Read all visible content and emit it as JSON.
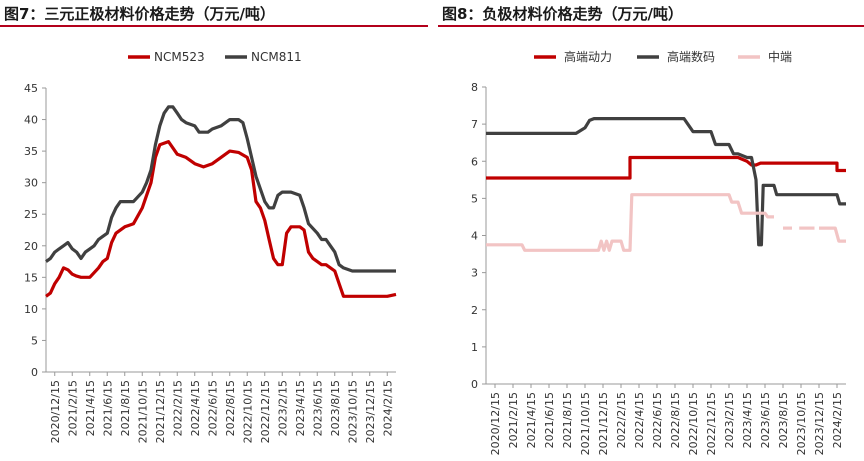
{
  "titles": {
    "left": "图7：三元正极材料价格走势（万元/吨）",
    "right": "图8：负极材料价格走势（万元/吨）"
  },
  "chart_data": [
    {
      "type": "line",
      "title": "图7：三元正极材料价格走势（万元/吨）",
      "ylim": [
        0,
        45
      ],
      "yticks": [
        0,
        5,
        10,
        15,
        20,
        25,
        30,
        35,
        40,
        45
      ],
      "xticks": [
        "2020/12/15",
        "2021/2/15",
        "2021/4/15",
        "2021/6/15",
        "2021/8/15",
        "2021/10/15",
        "2021/12/15",
        "2022/2/15",
        "2022/4/15",
        "2022/6/15",
        "2022/8/15",
        "2022/10/15",
        "2022/12/15",
        "2023/2/15",
        "2023/4/15",
        "2023/6/15",
        "2023/8/15",
        "2023/10/15",
        "2023/12/15",
        "2024/2/15"
      ],
      "x_months_range": [
        0,
        40
      ],
      "legend_position": "top",
      "series": [
        {
          "name": "NCM523",
          "color": "#c00000",
          "points": [
            [
              0,
              12
            ],
            [
              0.5,
              12.5
            ],
            [
              1,
              14
            ],
            [
              1.5,
              15
            ],
            [
              2,
              16.5
            ],
            [
              2.5,
              16.2
            ],
            [
              3,
              15.5
            ],
            [
              3.5,
              15.2
            ],
            [
              4,
              15
            ],
            [
              5,
              15
            ],
            [
              6,
              16.5
            ],
            [
              6.5,
              17.5
            ],
            [
              7,
              18
            ],
            [
              7.5,
              20.5
            ],
            [
              8,
              22
            ],
            [
              9,
              23
            ],
            [
              10,
              23.5
            ],
            [
              11,
              26
            ],
            [
              11.5,
              28
            ],
            [
              12,
              30
            ],
            [
              12.5,
              34
            ],
            [
              13,
              36
            ],
            [
              14,
              36.5
            ],
            [
              15,
              34.5
            ],
            [
              16,
              34
            ],
            [
              17,
              33
            ],
            [
              18,
              32.5
            ],
            [
              19,
              33
            ],
            [
              20,
              34
            ],
            [
              21,
              35
            ],
            [
              22,
              34.8
            ],
            [
              23,
              34
            ],
            [
              23.5,
              32
            ],
            [
              24,
              27
            ],
            [
              24.5,
              26
            ],
            [
              25,
              24
            ],
            [
              25.5,
              21
            ],
            [
              26,
              18
            ],
            [
              26.5,
              17
            ],
            [
              27,
              17
            ],
            [
              27.5,
              22
            ],
            [
              28,
              23
            ],
            [
              29,
              23
            ],
            [
              29.5,
              22.5
            ],
            [
              30,
              19
            ],
            [
              30.5,
              18
            ],
            [
              31,
              17.5
            ],
            [
              31.5,
              17
            ],
            [
              32,
              17
            ],
            [
              33,
              16
            ],
            [
              33.5,
              14
            ],
            [
              34,
              12
            ],
            [
              35,
              12
            ],
            [
              36,
              12
            ],
            [
              37,
              12
            ],
            [
              38,
              12
            ],
            [
              39,
              12
            ],
            [
              40,
              12.3
            ]
          ]
        },
        {
          "name": "NCM811",
          "color": "#404040",
          "points": [
            [
              0,
              17.5
            ],
            [
              0.5,
              18
            ],
            [
              1,
              19
            ],
            [
              1.5,
              19.5
            ],
            [
              2,
              20
            ],
            [
              2.5,
              20.5
            ],
            [
              3,
              19.5
            ],
            [
              3.5,
              19
            ],
            [
              4,
              18
            ],
            [
              4.5,
              19
            ],
            [
              5,
              19.5
            ],
            [
              5.5,
              20
            ],
            [
              6,
              21
            ],
            [
              6.5,
              21.5
            ],
            [
              7,
              22
            ],
            [
              7.5,
              24.5
            ],
            [
              8,
              26
            ],
            [
              8.5,
              27
            ],
            [
              9,
              27
            ],
            [
              10,
              27
            ],
            [
              11,
              28.5
            ],
            [
              11.5,
              30
            ],
            [
              12,
              32
            ],
            [
              12.5,
              36
            ],
            [
              13,
              39
            ],
            [
              13.5,
              41
            ],
            [
              14,
              42
            ],
            [
              14.5,
              42
            ],
            [
              15,
              41
            ],
            [
              15.5,
              40
            ],
            [
              16,
              39.5
            ],
            [
              17,
              39
            ],
            [
              17.5,
              38
            ],
            [
              18.5,
              38
            ],
            [
              19,
              38.5
            ],
            [
              20,
              39
            ],
            [
              21,
              40
            ],
            [
              22,
              40
            ],
            [
              22.5,
              39.5
            ],
            [
              23,
              37
            ],
            [
              23.5,
              34
            ],
            [
              24,
              31
            ],
            [
              24.5,
              29
            ],
            [
              25,
              27
            ],
            [
              25.5,
              26
            ],
            [
              26,
              26
            ],
            [
              26.5,
              28
            ],
            [
              27,
              28.5
            ],
            [
              28,
              28.5
            ],
            [
              29,
              28
            ],
            [
              29.5,
              26
            ],
            [
              30,
              23.5
            ],
            [
              31,
              22
            ],
            [
              31.5,
              21
            ],
            [
              32,
              21
            ],
            [
              32.5,
              20
            ],
            [
              33,
              19
            ],
            [
              33.5,
              17
            ],
            [
              34,
              16.5
            ],
            [
              35,
              16
            ],
            [
              36,
              16
            ],
            [
              37,
              16
            ],
            [
              38,
              16
            ],
            [
              39,
              16
            ],
            [
              40,
              16
            ]
          ]
        }
      ]
    },
    {
      "type": "line",
      "title": "图8：负极材料价格走势（万元/吨）",
      "ylim": [
        0,
        8
      ],
      "yticks": [
        0,
        1,
        2,
        3,
        4,
        5,
        6,
        7,
        8
      ],
      "xticks": [
        "2020/12/15",
        "2021/2/15",
        "2021/4/15",
        "2021/6/15",
        "2021/8/15",
        "2021/10/15",
        "2021/12/15",
        "2022/2/15",
        "2022/4/15",
        "2022/6/15",
        "2022/8/15",
        "2022/10/15",
        "2022/12/15",
        "2023/2/15",
        "2023/4/15",
        "2023/6/15",
        "2023/8/15",
        "2023/10/15",
        "2023/12/15",
        "2024/2/15"
      ],
      "x_months_range": [
        0,
        40
      ],
      "legend_position": "top",
      "series": [
        {
          "name": "高端动力",
          "color": "#c00000",
          "segments": [
            [
              [
                0,
                5.55
              ],
              [
                16,
                5.55
              ],
              [
                16,
                6.1
              ],
              [
                28,
                6.1
              ],
              [
                29,
                6.0
              ],
              [
                29.5,
                5.9
              ],
              [
                30,
                5.9
              ],
              [
                30.5,
                5.95
              ],
              [
                39,
                5.95
              ],
              [
                39,
                5.75
              ],
              [
                40,
                5.75
              ]
            ]
          ]
        },
        {
          "name": "高端数码",
          "color": "#404040",
          "segments": [
            [
              [
                0,
                6.75
              ],
              [
                10,
                6.75
              ],
              [
                11,
                6.9
              ],
              [
                11.5,
                7.1
              ],
              [
                12,
                7.15
              ],
              [
                22,
                7.15
              ],
              [
                23,
                6.8
              ],
              [
                25,
                6.8
              ],
              [
                25.5,
                6.45
              ],
              [
                27,
                6.45
              ],
              [
                27.5,
                6.2
              ],
              [
                28,
                6.2
              ],
              [
                29,
                6.1
              ],
              [
                29.5,
                6.1
              ],
              [
                30,
                5.5
              ],
              [
                30.3,
                3.75
              ],
              [
                30.6,
                3.75
              ],
              [
                30.8,
                5.35
              ],
              [
                32,
                5.35
              ],
              [
                32.3,
                5.1
              ],
              [
                39,
                5.1
              ],
              [
                39.3,
                4.85
              ],
              [
                40,
                4.85
              ]
            ]
          ]
        },
        {
          "name": "中端",
          "color": "#f2c4c4",
          "segments": [
            [
              [
                0,
                3.75
              ],
              [
                4,
                3.75
              ],
              [
                4.3,
                3.6
              ],
              [
                12.5,
                3.6
              ],
              [
                12.8,
                3.85
              ],
              [
                13.1,
                3.6
              ],
              [
                13.4,
                3.85
              ],
              [
                13.7,
                3.6
              ],
              [
                14,
                3.85
              ],
              [
                15,
                3.85
              ],
              [
                15.3,
                3.6
              ],
              [
                16,
                3.6
              ],
              [
                16.2,
                5.1
              ],
              [
                27,
                5.1
              ],
              [
                27.3,
                4.9
              ],
              [
                28,
                4.9
              ],
              [
                28.4,
                4.6
              ],
              [
                31,
                4.6
              ],
              [
                31.3,
                4.5
              ],
              [
                32,
                4.5
              ]
            ],
            [
              [
                33,
                4.2
              ],
              [
                34,
                4.2
              ]
            ],
            [
              [
                34.8,
                4.2
              ],
              [
                36.5,
                4.2
              ]
            ],
            [
              [
                37,
                4.2
              ],
              [
                38.8,
                4.2
              ],
              [
                39.2,
                3.85
              ],
              [
                40,
                3.85
              ]
            ]
          ]
        }
      ]
    }
  ]
}
